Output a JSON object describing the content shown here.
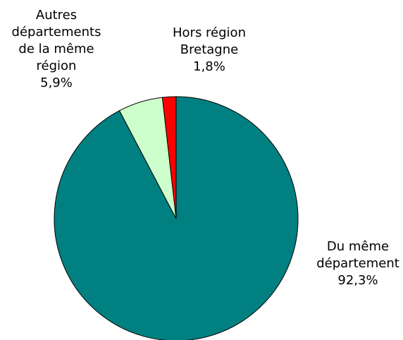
{
  "chart_data": {
    "type": "pie",
    "categories": [
      [
        "Du même",
        "département"
      ],
      [
        "Autres",
        "départements",
        "de la même",
        "région"
      ],
      [
        "Hors région",
        "Bretagne"
      ]
    ],
    "values": [
      92.3,
      5.9,
      1.8
    ],
    "value_labels": [
      "92,3%",
      "5,9%",
      "1,8%"
    ],
    "colors": [
      "#008080",
      "#ccffcc",
      "#ff0000"
    ]
  }
}
